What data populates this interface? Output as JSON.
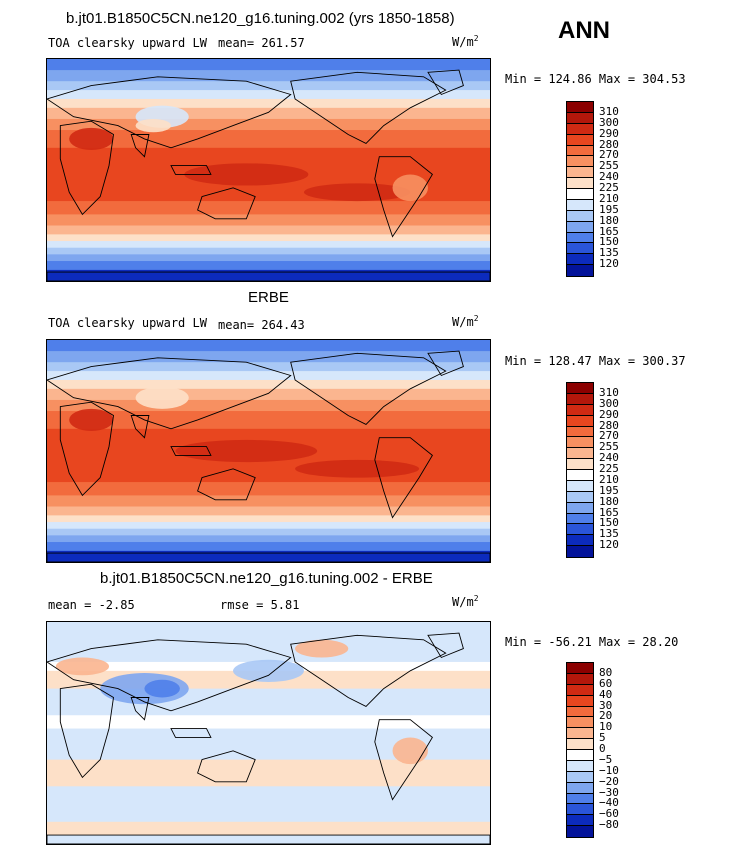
{
  "header": {
    "model_title": "b.jt01.B1850C5CN.ne120_g16.tuning.002 (yrs 1850-1858)",
    "season": "ANN"
  },
  "chart_data": [
    {
      "type": "heatmap",
      "title": "b.jt01.B1850C5CN.ne120_g16.tuning.002 (yrs 1850-1858)",
      "variable_label": "TOA clearsky upward LW",
      "mean_text": "mean= 261.57",
      "units_base": "W/m",
      "units_exp": "2",
      "min_max_text": "Min = 124.86 Max = 304.53",
      "colorbar_levels": [
        "310",
        "300",
        "290",
        "280",
        "270",
        "255",
        "240",
        "225",
        "210",
        "195",
        "180",
        "165",
        "150",
        "135",
        "120"
      ],
      "colorbar_colors": [
        "#8b0000",
        "#b3170b",
        "#d02a13",
        "#e8461f",
        "#f26b3d",
        "#f79061",
        "#fbb58f",
        "#fde0c8",
        "#ffffff",
        "#d6e7fb",
        "#a9c8f5",
        "#7ea6ef",
        "#4f7fea",
        "#2a55d9",
        "#0c2bbd",
        "#03139a"
      ],
      "min": 124.86,
      "max": 304.53,
      "mean": 261.57
    },
    {
      "type": "heatmap",
      "title": "ERBE",
      "variable_label": "TOA clearsky upward LW",
      "mean_text": "mean= 264.43",
      "units_base": "W/m",
      "units_exp": "2",
      "min_max_text": "Min = 128.47 Max = 300.37",
      "colorbar_levels": [
        "310",
        "300",
        "290",
        "280",
        "270",
        "255",
        "240",
        "225",
        "210",
        "195",
        "180",
        "165",
        "150",
        "135",
        "120"
      ],
      "colorbar_colors": [
        "#8b0000",
        "#b3170b",
        "#d02a13",
        "#e8461f",
        "#f26b3d",
        "#f79061",
        "#fbb58f",
        "#fde0c8",
        "#ffffff",
        "#d6e7fb",
        "#a9c8f5",
        "#7ea6ef",
        "#4f7fea",
        "#2a55d9",
        "#0c2bbd",
        "#03139a"
      ],
      "min": 128.47,
      "max": 300.37,
      "mean": 264.43
    },
    {
      "type": "heatmap",
      "title": "b.jt01.B1850C5CN.ne120_g16.tuning.002 - ERBE",
      "mean_text": "mean =   -2.85",
      "rmse_text": "rmse =    5.81",
      "units_base": "W/m",
      "units_exp": "2",
      "min_max_text": "Min = -56.21 Max =  28.20",
      "colorbar_levels": [
        "80",
        "60",
        "40",
        "30",
        "20",
        "10",
        "5",
        "0",
        "−5",
        "−10",
        "−20",
        "−30",
        "−40",
        "−60",
        "−80"
      ],
      "colorbar_colors": [
        "#8b0000",
        "#b3170b",
        "#d02a13",
        "#e8461f",
        "#f26b3d",
        "#f79061",
        "#fbb58f",
        "#fde0c8",
        "#ffffff",
        "#d6e7fb",
        "#a9c8f5",
        "#7ea6ef",
        "#4f7fea",
        "#2a55d9",
        "#0c2bbd",
        "#03139a"
      ],
      "min": -56.21,
      "max": 28.2,
      "mean": -2.85,
      "rmse": 5.81
    }
  ]
}
